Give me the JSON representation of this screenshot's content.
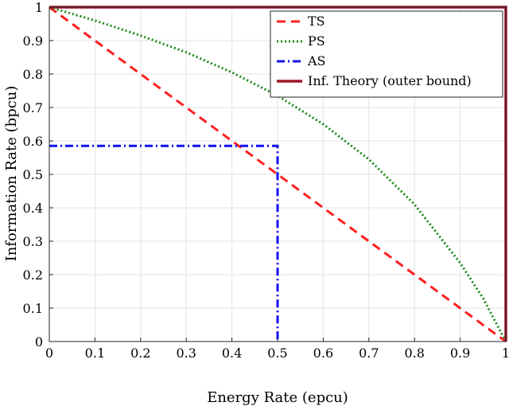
{
  "chart_data": {
    "type": "line",
    "xlabel": "Energy Rate (epcu)",
    "ylabel": "Information Rate (bpcu)",
    "xlim": [
      0,
      1
    ],
    "ylim": [
      0,
      1
    ],
    "grid": true,
    "legend_position": "top-right",
    "x_ticks": [
      "0",
      "0.1",
      "0.2",
      "0.3",
      "0.4",
      "0.5",
      "0.6",
      "0.7",
      "0.8",
      "0.9",
      "1"
    ],
    "y_ticks": [
      "0",
      "0.1",
      "0.2",
      "0.3",
      "0.4",
      "0.5",
      "0.6",
      "0.7",
      "0.8",
      "0.9",
      "1"
    ],
    "series": [
      {
        "name": "TS",
        "color": "#ff2020",
        "style": "dashed",
        "x": [
          0,
          1
        ],
        "y": [
          1,
          0
        ]
      },
      {
        "name": "PS",
        "color": "#1a8a1a",
        "style": "dotted",
        "x": [
          0,
          0.1,
          0.2,
          0.3,
          0.4,
          0.5,
          0.6,
          0.7,
          0.8,
          0.9,
          0.95,
          1
        ],
        "y": [
          1,
          0.96,
          0.915,
          0.865,
          0.805,
          0.735,
          0.65,
          0.545,
          0.41,
          0.235,
          0.13,
          0
        ]
      },
      {
        "name": "AS",
        "color": "#1010ee",
        "style": "dashdot",
        "x": [
          0,
          0.5,
          0.5
        ],
        "y": [
          0.585,
          0.585,
          0
        ]
      },
      {
        "name": "Inf. Theory (outer bound)",
        "color": "#a0142a",
        "style": "solid",
        "x": [
          0,
          1,
          1
        ],
        "y": [
          1,
          1,
          0
        ]
      }
    ]
  }
}
